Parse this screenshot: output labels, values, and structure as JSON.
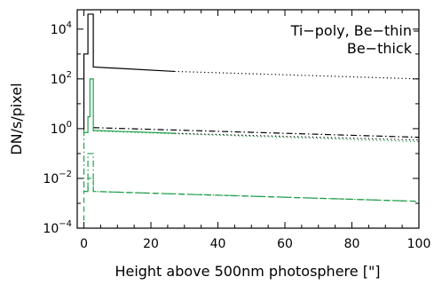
{
  "chart_data": {
    "type": "line",
    "title": "",
    "xlabel": "Height above 500nm photosphere [\"]",
    "ylabel": "DN/s/pixel",
    "xlim": [
      -2,
      100
    ],
    "ylim": [
      0.0001,
      60000
    ],
    "yscale": "log",
    "x_ticks": [
      0,
      20,
      40,
      60,
      80,
      100
    ],
    "x_tick_labels": [
      "0",
      "20",
      "40",
      "60",
      "80",
      "100"
    ],
    "y_ticks": [
      0.0001,
      0.01,
      1,
      100,
      10000
    ],
    "y_tick_labels": [
      {
        "base": "10",
        "exp": "−4"
      },
      {
        "base": "10",
        "exp": "−2"
      },
      {
        "base": "10",
        "exp": "0"
      },
      {
        "base": "10",
        "exp": "2"
      },
      {
        "base": "10",
        "exp": "4"
      }
    ],
    "legend": {
      "placement": "top-right",
      "entries": [
        {
          "text": "Ti−poly, Be−thin",
          "color": "#000000"
        },
        {
          "text": "Be−thick",
          "color": "#1f9e4a"
        }
      ]
    },
    "colors": {
      "black": "#000000",
      "green": "#1f9e4a"
    },
    "series": [
      {
        "color": "#000000",
        "dash": "solid",
        "points": [
          [
            0,
            0.9
          ],
          [
            0,
            1000
          ],
          [
            1.2,
            1000
          ],
          [
            1.2,
            40000
          ],
          [
            2.8,
            40000
          ],
          [
            2.8,
            300
          ],
          [
            27,
            200
          ]
        ]
      },
      {
        "color": "#000000",
        "dash": "dotted",
        "points": [
          [
            27,
            200
          ],
          [
            100,
            100
          ]
        ]
      },
      {
        "color": "#000000",
        "dash": "dashdot",
        "points": [
          [
            2.8,
            1.1
          ],
          [
            100,
            0.45
          ]
        ]
      },
      {
        "color": "#1f9e4a",
        "dash": "solid",
        "points": [
          [
            0,
            0.7
          ],
          [
            1.2,
            0.7
          ],
          [
            1.2,
            3
          ],
          [
            1.8,
            3
          ],
          [
            1.8,
            100
          ],
          [
            2.8,
            100
          ],
          [
            2.8,
            0.85
          ],
          [
            27,
            0.65
          ]
        ]
      },
      {
        "color": "#000000",
        "dash": "dotted",
        "points": [
          [
            27,
            0.65
          ],
          [
            100,
            0.35
          ]
        ]
      },
      {
        "color": "#1f9e4a",
        "dash": "dotted",
        "points": [
          [
            2.8,
            0.8
          ],
          [
            100,
            0.3
          ]
        ]
      },
      {
        "color": "#1f9e4a",
        "dash": "dashed",
        "points": [
          [
            0,
            0.0002
          ],
          [
            0,
            0.003
          ],
          [
            1.2,
            0.003
          ],
          [
            1.2,
            0.01
          ],
          [
            2.8,
            0.01
          ],
          [
            2.8,
            0.003
          ],
          [
            100,
            0.0012
          ]
        ]
      },
      {
        "color": "#1f9e4a",
        "dash": "dashdot",
        "points": [
          [
            0,
            0.9
          ],
          [
            0,
            0.003
          ],
          [
            1.2,
            0.003
          ],
          [
            1.2,
            0.1
          ],
          [
            2.8,
            0.1
          ],
          [
            2.8,
            0.003
          ],
          [
            100,
            0.0012
          ]
        ]
      }
    ]
  }
}
